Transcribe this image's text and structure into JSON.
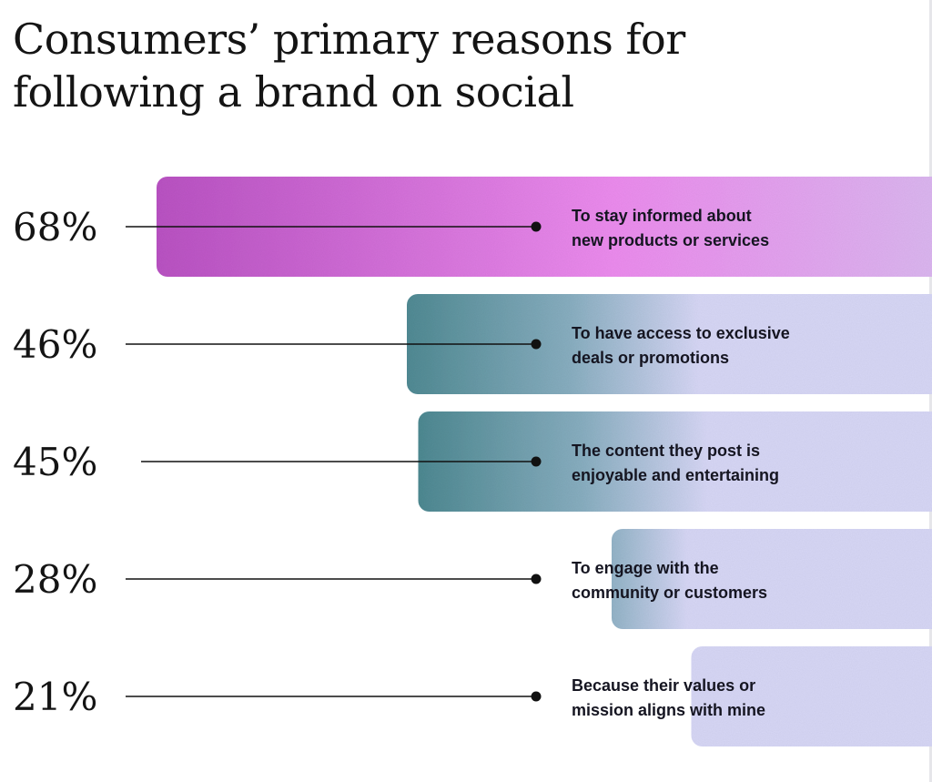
{
  "title_lines": [
    "Consumers’ primary reasons for",
    "following a brand on social"
  ],
  "colors": {
    "pink_start": "#b851c2",
    "pink_mid": "#ec8cee",
    "pink_end": "#dcb6f0",
    "teal": "#0d5f5d",
    "steel": "#88aec0",
    "lavender": "#d7d7f6",
    "text": "#141414"
  },
  "chart_data": {
    "type": "bar",
    "orientation": "horizontal",
    "unit": "%",
    "categories": [
      [
        "To stay informed about",
        "new products or services"
      ],
      [
        "To have access to exclusive",
        "deals or promotions"
      ],
      [
        "The content they post is",
        "enjoyable and entertaining"
      ],
      [
        "To engage with the",
        "community or customers"
      ],
      [
        "Because their values or",
        "mission aligns with mine"
      ]
    ],
    "values": [
      68,
      46,
      45,
      28,
      21
    ],
    "value_labels": [
      "68%",
      "46%",
      "45%",
      "28%",
      "21%"
    ],
    "grid": false,
    "legend": "none"
  }
}
